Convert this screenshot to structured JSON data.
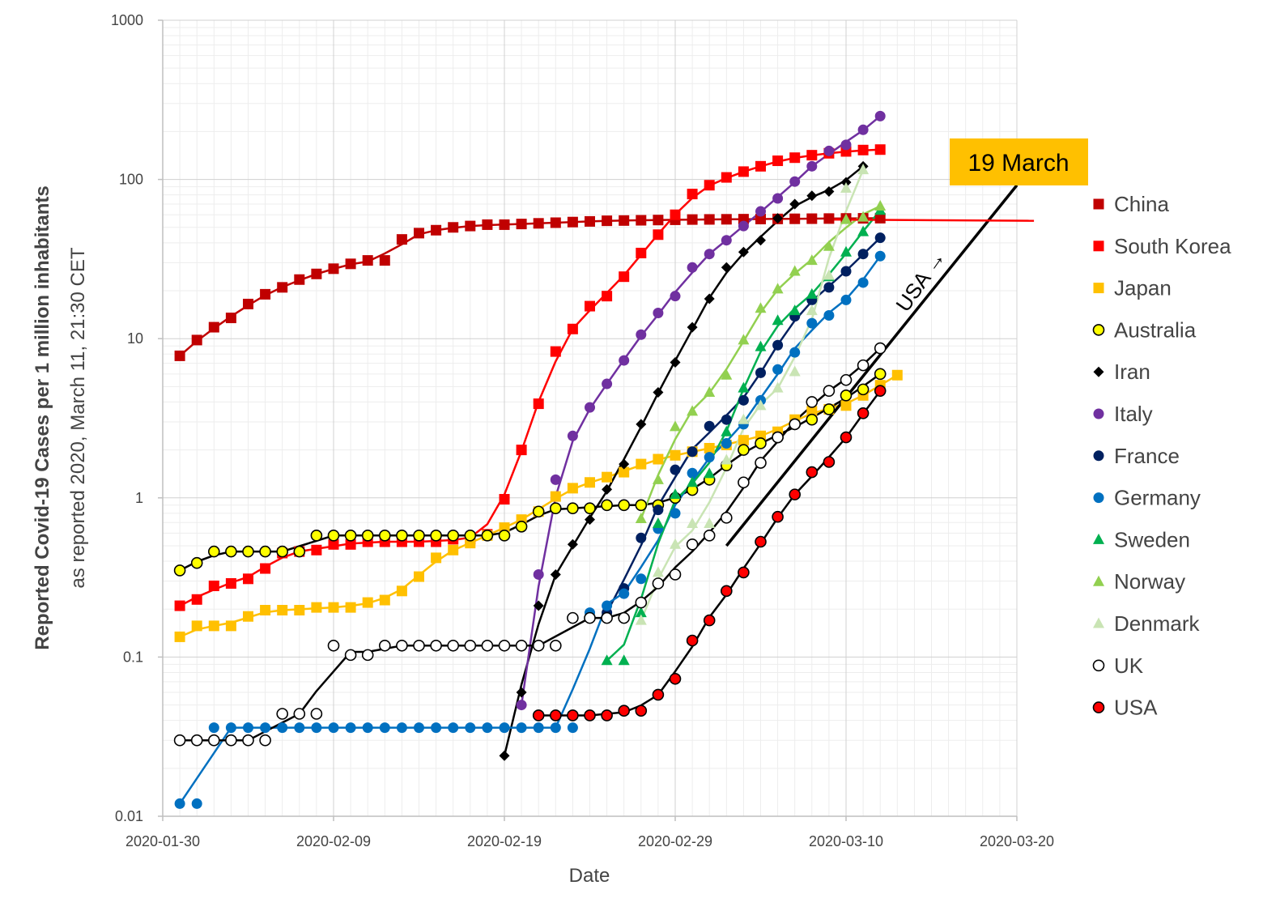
{
  "chart_data": {
    "type": "scatter",
    "ylabel": "Reported Covid-19 Cases per 1 million inhabitants",
    "ylabel_sub": "as reported 2020, March 11, 21:30 CET",
    "xlabel": "Date",
    "y_scale": "log",
    "ylim": [
      0.01,
      1000
    ],
    "xlim": [
      "2020-01-30",
      "2020-03-20"
    ],
    "x_ticks": [
      "2020-01-30",
      "2020-02-09",
      "2020-02-19",
      "2020-02-29",
      "2020-03-10",
      "2020-03-20"
    ],
    "y_ticks": [
      {
        "value": 0.01,
        "label": "0.01"
      },
      {
        "value": 0.1,
        "label": "0.1"
      },
      {
        "value": 1,
        "label": "1"
      },
      {
        "value": 10,
        "label": "10"
      },
      {
        "value": 100,
        "label": "100"
      },
      {
        "value": 1000,
        "label": "1000"
      }
    ],
    "grid": true,
    "legend_position": "right",
    "series": [
      {
        "name": "China",
        "color": "#C00000",
        "marker": "square",
        "x_start": "2020-01-31",
        "values": [
          7.8,
          9.8,
          11.8,
          13.5,
          16.5,
          19,
          21,
          23.5,
          25.5,
          27.5,
          29.5,
          31,
          31,
          42,
          46,
          48,
          50,
          51,
          52,
          52,
          52.5,
          53,
          53.5,
          54,
          54.5,
          55,
          55.2,
          55.4,
          55.6,
          55.8,
          56,
          56.1,
          56.2,
          56.3,
          56.4,
          56.5,
          56.6,
          56.7,
          56.8,
          56.9,
          57,
          57.1
        ]
      },
      {
        "name": "South Korea",
        "color": "#FF0000",
        "marker": "square",
        "x_start": "2020-01-31",
        "values": [
          0.21,
          0.23,
          0.28,
          0.29,
          0.31,
          0.36,
          0.45,
          0.46,
          0.47,
          0.51,
          0.51,
          0.53,
          0.53,
          0.53,
          0.53,
          0.53,
          0.55,
          0.55,
          0.59,
          0.98,
          2,
          3.9,
          8.3,
          11.5,
          16,
          18.5,
          24.5,
          34.5,
          45,
          60,
          81,
          92,
          103,
          112,
          121,
          131,
          137,
          142,
          146,
          150,
          153,
          154
        ]
      },
      {
        "name": "Japan",
        "color": "#FFC000",
        "marker": "square",
        "x_start": "2020-01-31",
        "values": [
          0.134,
          0.157,
          0.157,
          0.157,
          0.18,
          0.197,
          0.197,
          0.197,
          0.205,
          0.205,
          0.205,
          0.22,
          0.228,
          0.26,
          0.32,
          0.42,
          0.47,
          0.52,
          0.58,
          0.65,
          0.73,
          0.82,
          1.02,
          1.15,
          1.25,
          1.35,
          1.45,
          1.63,
          1.75,
          1.85,
          1.95,
          2.05,
          2.15,
          2.3,
          2.45,
          2.6,
          3.1,
          3.5,
          3.6,
          3.8,
          4.4,
          5.1,
          5.9
        ]
      },
      {
        "name": "Australia",
        "color": "#FFFF00",
        "stroke": "#000000",
        "marker": "circle",
        "x_start": "2020-01-31",
        "values": [
          0.35,
          0.39,
          0.46,
          0.46,
          0.46,
          0.46,
          0.46,
          0.46,
          0.58,
          0.58,
          0.58,
          0.58,
          0.58,
          0.58,
          0.58,
          0.58,
          0.58,
          0.58,
          0.58,
          0.58,
          0.66,
          0.82,
          0.86,
          0.86,
          0.86,
          0.9,
          0.9,
          0.9,
          0.9,
          1.0,
          1.12,
          1.3,
          1.6,
          2.0,
          2.2,
          2.4,
          2.9,
          3.1,
          3.6,
          4.4,
          4.8,
          6.0
        ]
      },
      {
        "name": "Iran",
        "color": "#000000",
        "marker": "diamond",
        "x_start": "2020-02-19",
        "values": [
          0.024,
          0.06,
          0.21,
          0.33,
          0.51,
          0.73,
          1.13,
          1.63,
          2.9,
          4.6,
          7.1,
          11.8,
          17.8,
          28,
          35,
          41.5,
          57,
          70,
          79,
          84,
          96,
          121
        ]
      },
      {
        "name": "Italy",
        "color": "#7030A0",
        "marker": "circle",
        "x_start": "2020-02-20",
        "values": [
          0.05,
          0.33,
          1.3,
          2.45,
          3.7,
          5.2,
          7.3,
          10.6,
          14.5,
          18.5,
          28,
          34,
          41.5,
          51,
          63,
          76,
          97,
          121,
          151,
          165,
          205,
          250
        ]
      },
      {
        "name": "France",
        "color": "#002060",
        "marker": "circle",
        "x_start": "2020-02-25",
        "values": [
          0.19,
          0.27,
          0.56,
          0.84,
          1.5,
          1.95,
          2.82,
          3.1,
          4.1,
          6.1,
          9.1,
          13.8,
          17.5,
          21,
          26.5,
          34,
          43
        ]
      },
      {
        "name": "Germany",
        "color": "#0070C0",
        "marker": "circle",
        "x_start": "2020-01-31",
        "values": [
          0.012,
          0.012,
          0.036,
          0.036,
          0.036,
          0.036,
          0.036,
          0.036,
          0.036,
          0.036,
          0.036,
          0.036,
          0.036,
          0.036,
          0.036,
          0.036,
          0.036,
          0.036,
          0.036,
          0.036,
          0.036,
          0.036,
          0.036,
          0.036,
          0.19,
          0.21,
          0.25,
          0.31,
          0.64,
          0.8,
          1.43,
          1.8,
          2.2,
          2.9,
          4.1,
          6.4,
          8.2,
          12.5,
          14,
          17.5,
          22.5,
          33
        ]
      },
      {
        "name": "Sweden",
        "color": "#00B050",
        "marker": "triangle",
        "x_start": "2020-02-25",
        "values": [
          0.095,
          0.095,
          0.19,
          0.69,
          1.05,
          1.25,
          1.42,
          2.6,
          4.9,
          8.9,
          13,
          15,
          19,
          24.5,
          35,
          47,
          64
        ]
      },
      {
        "name": "Norway",
        "color": "#92D050",
        "marker": "triangle",
        "x_start": "2020-02-27",
        "values": [
          0.74,
          1.3,
          2.8,
          3.5,
          4.6,
          5.9,
          9.8,
          15.5,
          20.5,
          26.5,
          31,
          38,
          56,
          58,
          68
        ]
      },
      {
        "name": "Denmark",
        "color": "#C9E4B4",
        "marker": "triangle",
        "x_start": "2020-02-27",
        "values": [
          0.17,
          0.34,
          0.51,
          0.69,
          0.69,
          1.73,
          3.1,
          3.8,
          4.9,
          6.2,
          15,
          25,
          88,
          115
        ]
      },
      {
        "name": "UK",
        "color": "#FFFFFF",
        "stroke": "#000000",
        "marker": "circle",
        "x_start": "2020-01-31",
        "values": [
          0.03,
          0.03,
          0.03,
          0.03,
          0.03,
          0.03,
          0.044,
          0.044,
          0.044,
          0.118,
          0.103,
          0.103,
          0.118,
          0.118,
          0.118,
          0.118,
          0.118,
          0.118,
          0.118,
          0.118,
          0.118,
          0.118,
          0.118,
          0.176,
          0.176,
          0.176,
          0.176,
          0.22,
          0.29,
          0.33,
          0.51,
          0.58,
          0.75,
          1.25,
          1.66,
          2.4,
          2.9,
          4.0,
          4.7,
          5.5,
          6.8,
          8.7
        ]
      },
      {
        "name": "USA",
        "color": "#FF0000",
        "stroke": "#000000",
        "marker": "circle",
        "x_start": "2020-02-21",
        "values": [
          0.043,
          0.043,
          0.043,
          0.043,
          0.043,
          0.046,
          0.046,
          0.058,
          0.073,
          0.127,
          0.17,
          0.26,
          0.34,
          0.53,
          0.76,
          1.05,
          1.45,
          1.68,
          2.4,
          3.4,
          4.7
        ]
      }
    ],
    "trend_lines": [
      {
        "name": "USA projection",
        "from": {
          "x": "2020-03-03",
          "y": 0.5
        },
        "to": {
          "x": "2020-03-20",
          "y": 92
        }
      },
      {
        "name": "China level",
        "from": {
          "x": "2020-03-09",
          "y": 56
        },
        "to": {
          "x": "2020-03-21",
          "y": 55
        }
      }
    ],
    "annotations": [
      {
        "text": "19 March",
        "anchor": {
          "x": "2020-03-20",
          "y": 100
        },
        "box_color": "#FFC000"
      },
      {
        "text": "USA →",
        "anchor": {
          "x": "2020-03-15",
          "y": 20
        },
        "rotation": -55
      }
    ]
  }
}
